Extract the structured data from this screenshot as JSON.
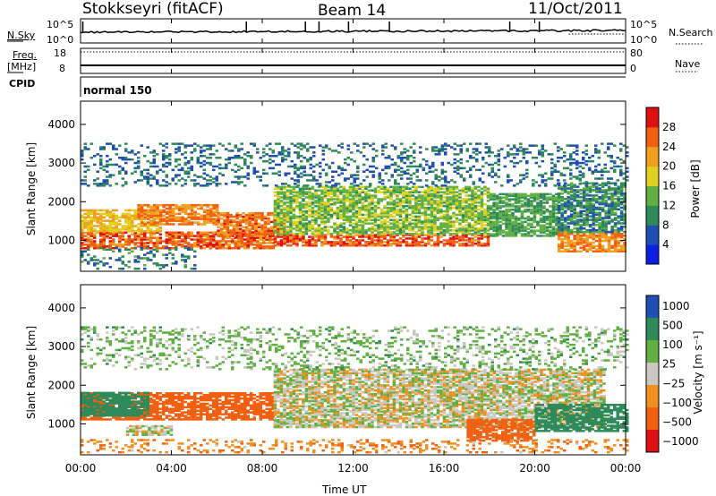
{
  "header": {
    "radar": "Stokkseyri (fitACF)",
    "beam": "Beam 14",
    "date": "11/Oct/2011"
  },
  "summary_labels": {
    "nsky": "N.Sky",
    "nsearch": "N.Search",
    "freq": "Freq.",
    "mhz": "[MHz]",
    "nave": "Nave",
    "cpid": "CPID",
    "cpid_value": "normal 150",
    "noise_tick_top": "10^5",
    "noise_tick_bottom": "10^0",
    "freq_tick_top": "18",
    "freq_tick_bottom": "8",
    "nave_tick_top": "80",
    "nave_tick_bottom": "0"
  },
  "colors": {
    "power_scale": [
      "#0a1fe0",
      "#1f4fb0",
      "#2f8a5a",
      "#5fb040",
      "#e0d020",
      "#f0a020",
      "#f06010",
      "#e01010"
    ],
    "velocity_scale": [
      "#1f4fb0",
      "#2f8a5a",
      "#5fb040",
      "#c8c8c0",
      "#f09020",
      "#f06010",
      "#e01010"
    ],
    "ground_scatter": "#bdbdb5"
  },
  "chart_data": [
    {
      "type": "line",
      "panel": "noise",
      "ylabel": "N.Sky",
      "x": [
        "00:00",
        "04:00",
        "08:00",
        "12:00",
        "16:00",
        "20:00",
        "00:00"
      ],
      "series": [
        {
          "name": "N.Sky",
          "values": [
            2.7,
            2.8,
            2.9,
            3.0,
            3.0,
            3.1,
            2.9
          ]
        }
      ],
      "yscale": "log"
    },
    {
      "type": "line",
      "panel": "frequency",
      "ylabel": "Freq. [MHz]",
      "ylim": [
        8,
        18
      ],
      "series": [
        {
          "name": "Freq.",
          "values": [
            10,
            10,
            10,
            10,
            10,
            10,
            10
          ]
        }
      ]
    },
    {
      "type": "heatmap",
      "panel": "power",
      "ylabel": "Slant Range [km]",
      "colorbar_label": "Power [dB]",
      "colorbar_ticks": [
        "4",
        "8",
        "12",
        "16",
        "20",
        "24",
        "28"
      ],
      "colorbar_range": [
        0,
        32
      ],
      "yticks": [
        "1000",
        "2000",
        "3000",
        "4000"
      ],
      "ylim": [
        200,
        4600
      ],
      "xlim": [
        0,
        24
      ],
      "bands": [
        {
          "t0": 0,
          "t1": 8.5,
          "r0": 780,
          "r1": 1220,
          "db": 26
        },
        {
          "t0": 0,
          "t1": 3.5,
          "r0": 1220,
          "r1": 1780,
          "db": 20
        },
        {
          "t0": 2.5,
          "t1": 6,
          "r0": 1400,
          "r1": 1900,
          "db": 24
        },
        {
          "t0": 6,
          "t1": 9,
          "r0": 1100,
          "r1": 1700,
          "db": 25
        },
        {
          "t0": 8.5,
          "t1": 18,
          "r0": 850,
          "r1": 1150,
          "db": 27
        },
        {
          "t0": 8.5,
          "t1": 18,
          "r0": 1150,
          "r1": 2400,
          "db": 15
        },
        {
          "t0": 18,
          "t1": 21,
          "r0": 1100,
          "r1": 2200,
          "db": 12
        },
        {
          "t0": 21,
          "t1": 24,
          "r0": 700,
          "r1": 1200,
          "db": 24
        },
        {
          "t0": 21,
          "t1": 24,
          "r0": 1200,
          "r1": 2500,
          "db": 10
        },
        {
          "t0": 0,
          "t1": 5,
          "r0": 250,
          "r1": 800,
          "db": 9
        },
        {
          "t0": 0,
          "t1": 24,
          "r0": 2400,
          "r1": 3500,
          "db": 8
        }
      ]
    },
    {
      "type": "heatmap",
      "panel": "velocity",
      "ylabel": "Slant Range [km]",
      "colorbar_label": "Velocity [m s⁻¹]",
      "colorbar_ticks": [
        "1000",
        "500",
        "100",
        "25",
        "−25",
        "−100",
        "−500",
        "−1000"
      ],
      "yticks": [
        "1000",
        "2000",
        "3000",
        "4000"
      ],
      "ylim": [
        200,
        4600
      ],
      "xlim": [
        0,
        24
      ],
      "xlabel": "Time UT",
      "xticks": [
        "00:00",
        "04:00",
        "08:00",
        "12:00",
        "16:00",
        "20:00",
        "00:00"
      ],
      "bands": [
        {
          "t0": 0,
          "t1": 8.5,
          "r0": 1100,
          "r1": 1800,
          "v": -200
        },
        {
          "t0": 0,
          "t1": 3,
          "r0": 1200,
          "r1": 1800,
          "v": 200
        },
        {
          "t0": 2,
          "t1": 4,
          "r0": 700,
          "r1": 950,
          "v": 0
        },
        {
          "t0": 8.5,
          "t1": 23,
          "r0": 900,
          "r1": 2400,
          "v": 0
        },
        {
          "t0": 17,
          "t1": 20,
          "r0": 550,
          "r1": 1100,
          "v": -400
        },
        {
          "t0": 20,
          "t1": 24,
          "r0": 800,
          "r1": 1500,
          "v": 400
        },
        {
          "t0": 0,
          "t1": 24,
          "r0": 250,
          "r1": 600,
          "v": -80
        },
        {
          "t0": 0,
          "t1": 24,
          "r0": 2400,
          "r1": 3500,
          "v": 50
        }
      ]
    }
  ]
}
